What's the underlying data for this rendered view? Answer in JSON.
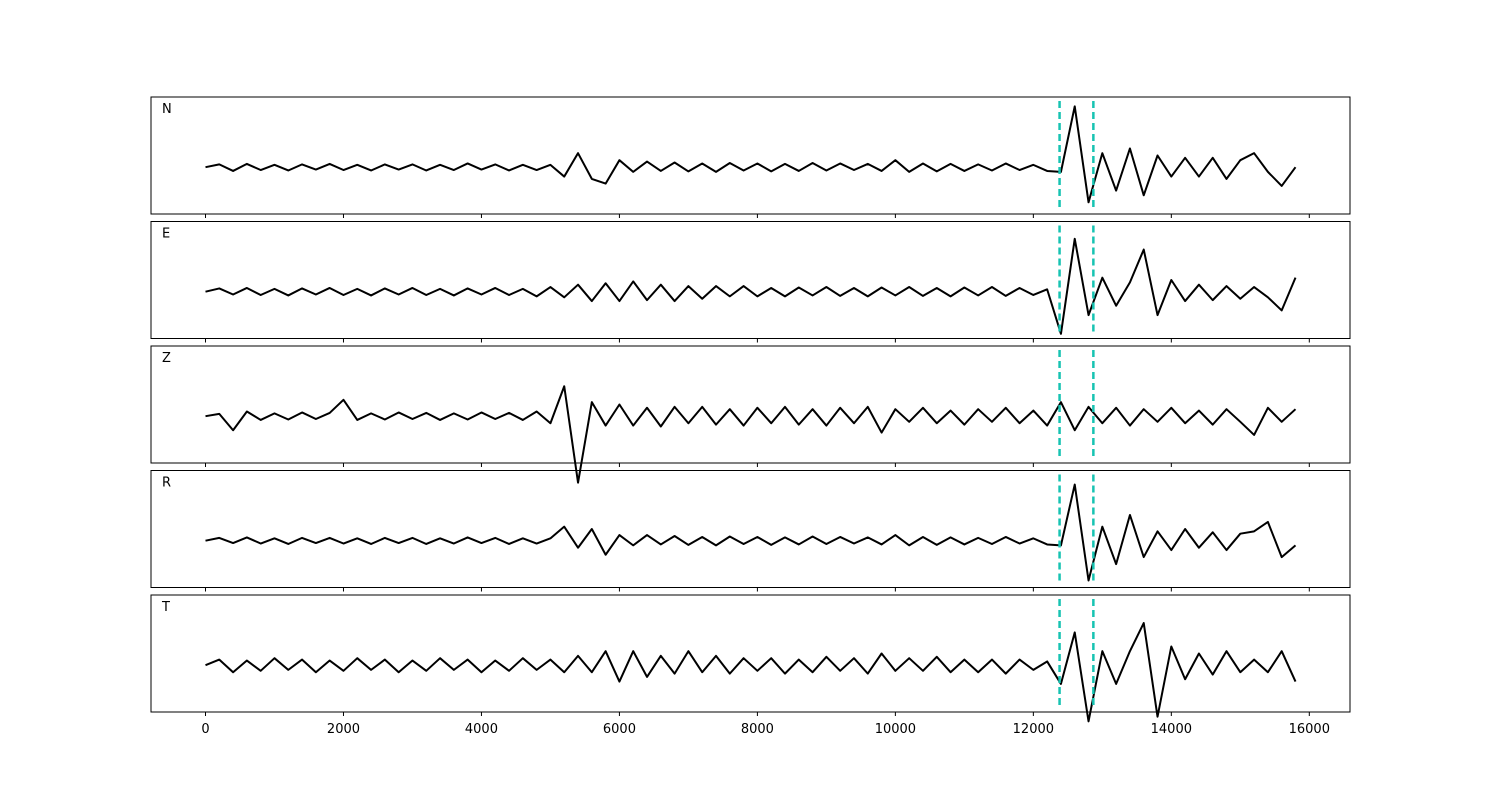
{
  "chart_data": {
    "type": "line",
    "layout": "stacked",
    "x": [
      0,
      200,
      400,
      600,
      800,
      1000,
      1200,
      1400,
      1600,
      1800,
      2000,
      2200,
      2400,
      2600,
      2800,
      3000,
      3200,
      3400,
      3600,
      3800,
      4000,
      4200,
      4400,
      4600,
      4800,
      5000,
      5200,
      5400,
      5600,
      5800,
      6000,
      6200,
      6400,
      6600,
      6800,
      7000,
      7200,
      7400,
      7600,
      7800,
      8000,
      8200,
      8400,
      8600,
      8800,
      9000,
      9200,
      9400,
      9600,
      9800,
      10000,
      10200,
      10400,
      10600,
      10800,
      11000,
      11200,
      11400,
      11600,
      11800,
      12000,
      12200,
      12400,
      12600,
      12800,
      13000,
      13200,
      13400,
      13600,
      13800,
      14000,
      14200,
      14400,
      14600,
      14800,
      15000,
      15200,
      15400,
      15600,
      15800
    ],
    "xlim": [
      -790,
      16590
    ],
    "xticks": [
      0,
      2000,
      4000,
      6000,
      8000,
      10000,
      12000,
      14000,
      16000
    ],
    "ylim": [
      -1.0,
      1.5
    ],
    "markers": [
      12380,
      12870
    ],
    "marker_color": "#17c3b2",
    "series": [
      {
        "name": "N",
        "color": "#000000",
        "values": [
          0,
          0.06,
          -0.08,
          0.07,
          -0.06,
          0.05,
          -0.07,
          0.06,
          -0.05,
          0.07,
          -0.06,
          0.05,
          -0.07,
          0.06,
          -0.05,
          0.06,
          -0.07,
          0.05,
          -0.06,
          0.08,
          -0.05,
          0.06,
          -0.07,
          0.05,
          -0.06,
          0.05,
          -0.2,
          0.3,
          -0.25,
          -0.35,
          0.15,
          -0.1,
          0.12,
          -0.08,
          0.1,
          -0.09,
          0.08,
          -0.1,
          0.09,
          -0.07,
          0.08,
          -0.09,
          0.07,
          -0.08,
          0.09,
          -0.07,
          0.08,
          -0.06,
          0.07,
          -0.08,
          0.15,
          -0.1,
          0.08,
          -0.09,
          0.07,
          -0.08,
          0.06,
          -0.07,
          0.08,
          -0.06,
          0.05,
          -0.08,
          -0.1,
          1.3,
          -0.75,
          0.3,
          -0.5,
          0.4,
          -0.6,
          0.25,
          -0.2,
          0.2,
          -0.2,
          0.2,
          -0.25,
          0.15,
          0.3,
          -0.1,
          -0.4,
          0
        ]
      },
      {
        "name": "E",
        "color": "#000000",
        "values": [
          0,
          0.07,
          -0.06,
          0.08,
          -0.07,
          0.06,
          -0.08,
          0.07,
          -0.06,
          0.08,
          -0.07,
          0.06,
          -0.08,
          0.07,
          -0.06,
          0.08,
          -0.07,
          0.06,
          -0.08,
          0.07,
          -0.06,
          0.08,
          -0.07,
          0.06,
          -0.1,
          0.1,
          -0.12,
          0.15,
          -0.2,
          0.18,
          -0.2,
          0.22,
          -0.18,
          0.15,
          -0.2,
          0.12,
          -0.15,
          0.12,
          -0.1,
          0.12,
          -0.1,
          0.08,
          -0.1,
          0.09,
          -0.08,
          0.1,
          -0.09,
          0.08,
          -0.1,
          0.09,
          -0.08,
          0.1,
          -0.09,
          0.08,
          -0.1,
          0.09,
          -0.08,
          0.1,
          -0.09,
          0.08,
          -0.07,
          0.05,
          -0.9,
          1.13,
          -0.5,
          0.3,
          -0.3,
          0.2,
          0.9,
          -0.5,
          0.25,
          -0.2,
          0.15,
          -0.18,
          0.12,
          -0.15,
          0.1,
          -0.12,
          -0.4,
          0.3
        ]
      },
      {
        "name": "Z",
        "color": "#000000",
        "values": [
          0,
          0.05,
          -0.3,
          0.1,
          -0.08,
          0.06,
          -0.07,
          0.08,
          -0.06,
          0.07,
          0.35,
          -0.08,
          0.06,
          -0.07,
          0.08,
          -0.06,
          0.07,
          -0.08,
          0.06,
          -0.07,
          0.08,
          -0.06,
          0.07,
          -0.08,
          0.1,
          -0.15,
          0.64,
          -1.42,
          0.3,
          -0.2,
          0.25,
          -0.2,
          0.18,
          -0.22,
          0.2,
          -0.15,
          0.2,
          -0.18,
          0.15,
          -0.2,
          0.18,
          -0.15,
          0.2,
          -0.18,
          0.15,
          -0.2,
          0.18,
          -0.15,
          0.2,
          -0.35,
          0.15,
          -0.12,
          0.18,
          -0.15,
          0.12,
          -0.18,
          0.15,
          -0.12,
          0.18,
          -0.15,
          0.12,
          -0.2,
          0.3,
          -0.3,
          0.2,
          -0.15,
          0.18,
          -0.2,
          0.15,
          -0.12,
          0.18,
          -0.15,
          0.12,
          -0.18,
          0.15,
          -0.12,
          -0.4,
          0.18,
          -0.12,
          0.15
        ]
      },
      {
        "name": "R",
        "color": "#000000",
        "values": [
          0,
          0.06,
          -0.05,
          0.07,
          -0.06,
          0.05,
          -0.07,
          0.06,
          -0.05,
          0.06,
          -0.06,
          0.05,
          -0.07,
          0.06,
          -0.05,
          0.06,
          -0.07,
          0.05,
          -0.06,
          0.07,
          -0.05,
          0.06,
          -0.07,
          0.05,
          -0.06,
          0.05,
          0.3,
          -0.15,
          0.25,
          -0.3,
          0.12,
          -0.1,
          0.12,
          -0.08,
          0.1,
          -0.09,
          0.08,
          -0.1,
          0.09,
          -0.07,
          0.08,
          -0.09,
          0.07,
          -0.08,
          0.09,
          -0.07,
          0.08,
          -0.06,
          0.07,
          -0.08,
          0.12,
          -0.1,
          0.08,
          -0.09,
          0.07,
          -0.08,
          0.06,
          -0.07,
          0.08,
          -0.06,
          0.05,
          -0.08,
          -0.1,
          1.2,
          -0.85,
          0.3,
          -0.5,
          0.55,
          -0.35,
          0.2,
          -0.2,
          0.25,
          -0.15,
          0.18,
          -0.2,
          0.15,
          0.2,
          0.4,
          -0.35,
          -0.1
        ]
      },
      {
        "name": "T",
        "color": "#000000",
        "values": [
          0,
          0.12,
          -0.15,
          0.1,
          -0.12,
          0.15,
          -0.1,
          0.12,
          -0.15,
          0.1,
          -0.12,
          0.15,
          -0.1,
          0.12,
          -0.15,
          0.1,
          -0.12,
          0.15,
          -0.1,
          0.12,
          -0.15,
          0.1,
          -0.12,
          0.15,
          -0.1,
          0.12,
          -0.15,
          0.2,
          -0.15,
          0.3,
          -0.35,
          0.3,
          -0.25,
          0.2,
          -0.18,
          0.3,
          -0.15,
          0.2,
          -0.18,
          0.15,
          -0.12,
          0.15,
          -0.18,
          0.12,
          -0.15,
          0.18,
          -0.12,
          0.15,
          -0.18,
          0.25,
          -0.12,
          0.15,
          -0.12,
          0.18,
          -0.15,
          0.12,
          -0.15,
          0.12,
          -0.18,
          0.12,
          -0.1,
          0.08,
          -0.4,
          0.7,
          -1.2,
          0.3,
          -0.4,
          0.3,
          0.9,
          -1.1,
          0.4,
          -0.3,
          0.25,
          -0.2,
          0.3,
          -0.15,
          0.12,
          -0.15,
          0.3,
          -0.35
        ]
      }
    ]
  }
}
